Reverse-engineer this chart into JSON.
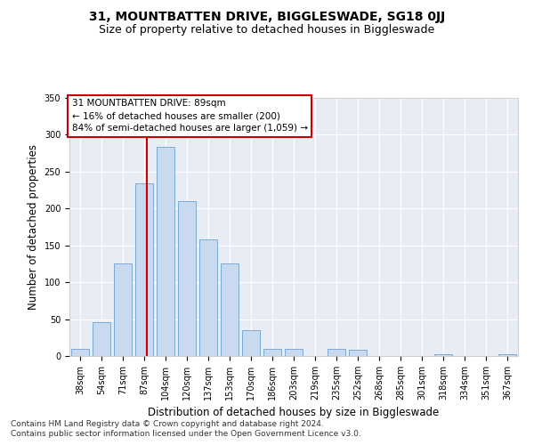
{
  "title": "31, MOUNTBATTEN DRIVE, BIGGLESWADE, SG18 0JJ",
  "subtitle": "Size of property relative to detached houses in Biggleswade",
  "xlabel": "Distribution of detached houses by size in Biggleswade",
  "ylabel": "Number of detached properties",
  "bin_labels": [
    "38sqm",
    "54sqm",
    "71sqm",
    "87sqm",
    "104sqm",
    "120sqm",
    "137sqm",
    "153sqm",
    "170sqm",
    "186sqm",
    "203sqm",
    "219sqm",
    "235sqm",
    "252sqm",
    "268sqm",
    "285sqm",
    "301sqm",
    "318sqm",
    "334sqm",
    "351sqm",
    "367sqm"
  ],
  "bar_values": [
    10,
    46,
    126,
    234,
    284,
    210,
    158,
    125,
    35,
    10,
    10,
    0,
    10,
    8,
    0,
    0,
    0,
    2,
    0,
    0,
    2
  ],
  "bar_color": "#c9d9ef",
  "bar_edge_color": "#7baad4",
  "vline_x_index": 3.12,
  "vline_color": "#cc0000",
  "annotation_title": "31 MOUNTBATTEN DRIVE: 89sqm",
  "annotation_line2": "← 16% of detached houses are smaller (200)",
  "annotation_line3": "84% of semi-detached houses are larger (1,059) →",
  "annotation_box_color": "#ffffff",
  "annotation_box_edge": "#cc0000",
  "footer_line1": "Contains HM Land Registry data © Crown copyright and database right 2024.",
  "footer_line2": "Contains public sector information licensed under the Open Government Licence v3.0.",
  "ylim": [
    0,
    350
  ],
  "bg_color": "#e8edf5",
  "grid_color": "#ffffff",
  "fig_bg": "#ffffff",
  "title_fontsize": 10,
  "subtitle_fontsize": 9,
  "axis_label_fontsize": 8.5,
  "tick_fontsize": 7,
  "annotation_fontsize": 7.5,
  "footer_fontsize": 6.5
}
